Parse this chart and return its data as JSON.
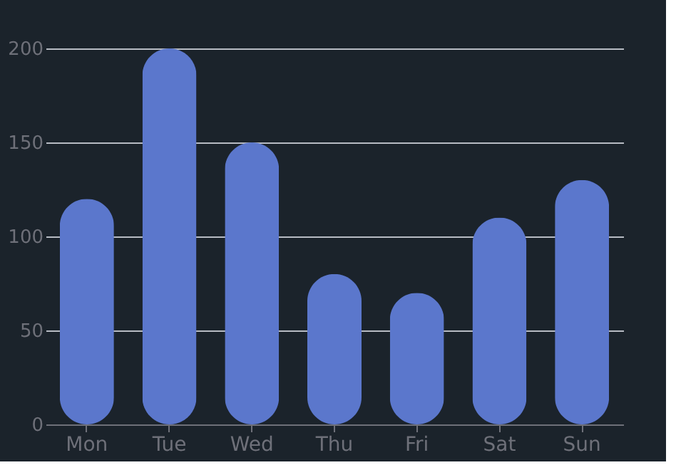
{
  "chart_data": {
    "type": "bar",
    "categories": [
      "Mon",
      "Tue",
      "Wed",
      "Thu",
      "Fri",
      "Sat",
      "Sun"
    ],
    "values": [
      120,
      200,
      150,
      80,
      70,
      110,
      130
    ],
    "color": "#5b77cc",
    "ylim": [
      0,
      200
    ],
    "yticks": [
      0,
      50,
      100,
      150,
      200
    ],
    "grid": "y"
  }
}
